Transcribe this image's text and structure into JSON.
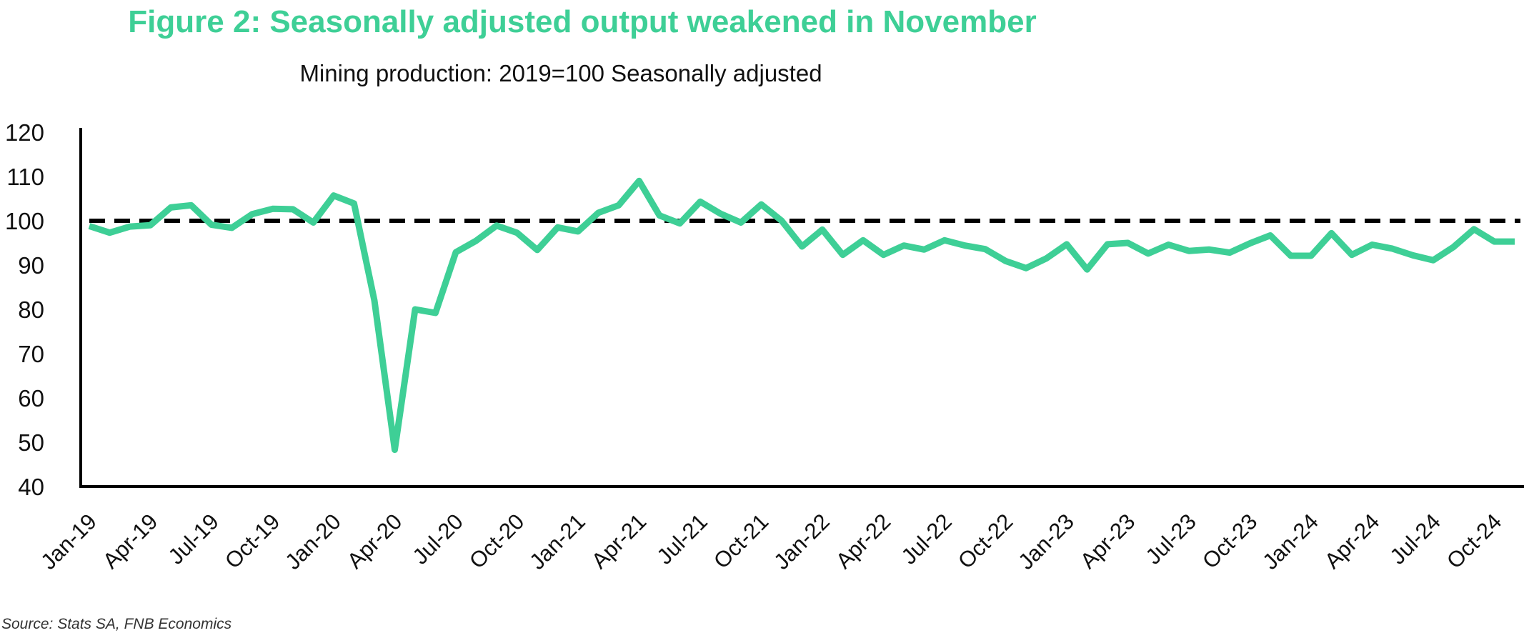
{
  "figure_title": "Figure 2: Seasonally adjusted output weakened in November",
  "subtitle": "Mining production: 2019=100 Seasonally adjusted",
  "source": "Source: Stats SA, FNB Economics",
  "colors": {
    "series": "#3ecf96",
    "title": "#3ecf96",
    "reference": "#000000",
    "axis": "#000000"
  },
  "chart_data": {
    "type": "line",
    "title": "Figure 2: Seasonally adjusted output weakened in November",
    "subtitle": "Mining production: 2019=100 Seasonally adjusted",
    "xlabel": "",
    "ylabel": "",
    "ylim": [
      40,
      120
    ],
    "yticks": [
      40,
      50,
      60,
      70,
      80,
      90,
      100,
      110,
      120
    ],
    "xtick_labels": [
      "Jan-19",
      "Apr-19",
      "Jul-19",
      "Oct-19",
      "Jan-20",
      "Apr-20",
      "Jul-20",
      "Oct-20",
      "Jan-21",
      "Apr-21",
      "Jul-21",
      "Oct-21",
      "Jan-22",
      "Apr-22",
      "Jul-22",
      "Oct-22",
      "Jan-23",
      "Apr-23",
      "Jul-23",
      "Oct-23",
      "Jan-24",
      "Apr-24",
      "Jul-24",
      "Oct-24"
    ],
    "grid": false,
    "legend": "none",
    "reference_line": {
      "value": 100,
      "style": "dashed"
    },
    "series": [
      {
        "x": [
          "Jan-19",
          "Feb-19",
          "Mar-19",
          "Apr-19",
          "May-19",
          "Jun-19",
          "Jul-19",
          "Aug-19",
          "Sep-19",
          "Oct-19",
          "Nov-19",
          "Dec-19",
          "Jan-20",
          "Feb-20",
          "Mar-20",
          "Apr-20",
          "May-20",
          "Jun-20",
          "Jul-20",
          "Aug-20",
          "Sep-20",
          "Oct-20",
          "Nov-20",
          "Dec-20",
          "Jan-21",
          "Feb-21",
          "Mar-21",
          "Apr-21",
          "May-21",
          "Jun-21",
          "Jul-21",
          "Aug-21",
          "Sep-21",
          "Oct-21",
          "Nov-21",
          "Dec-21",
          "Jan-22",
          "Feb-22",
          "Mar-22",
          "Apr-22",
          "May-22",
          "Jun-22",
          "Jul-22",
          "Aug-22",
          "Sep-22",
          "Oct-22",
          "Nov-22",
          "Dec-22",
          "Jan-23",
          "Feb-23",
          "Mar-23",
          "Apr-23",
          "May-23",
          "Jun-23",
          "Jul-23",
          "Aug-23",
          "Sep-23",
          "Oct-23",
          "Nov-23",
          "Dec-23",
          "Jan-24",
          "Feb-24",
          "Mar-24",
          "Apr-24",
          "May-24",
          "Jun-24",
          "Jul-24",
          "Aug-24",
          "Sep-24",
          "Oct-24",
          "Nov-24"
        ],
        "values": [
          98.8,
          97.3,
          98.7,
          99.0,
          103.0,
          103.5,
          99.1,
          98.4,
          101.5,
          102.7,
          102.6,
          99.6,
          105.7,
          103.9,
          82.0,
          48.3,
          80.0,
          79.2,
          92.9,
          95.5,
          98.9,
          97.3,
          93.4,
          98.5,
          97.6,
          101.8,
          103.5,
          109.0,
          101.2,
          99.4,
          104.3,
          101.6,
          99.6,
          103.7,
          100.0,
          94.2,
          98.0,
          92.3,
          95.6,
          92.3,
          94.4,
          93.5,
          95.6,
          94.4,
          93.6,
          90.9,
          89.3,
          91.5,
          94.7,
          89.0,
          94.7,
          95.0,
          92.6,
          94.6,
          93.2,
          93.5,
          92.8,
          94.9,
          96.7,
          92.1,
          92.1,
          97.2,
          92.3,
          94.6,
          93.7,
          92.2,
          91.1,
          94.1,
          98.1,
          95.3,
          95.3
        ]
      }
    ]
  }
}
